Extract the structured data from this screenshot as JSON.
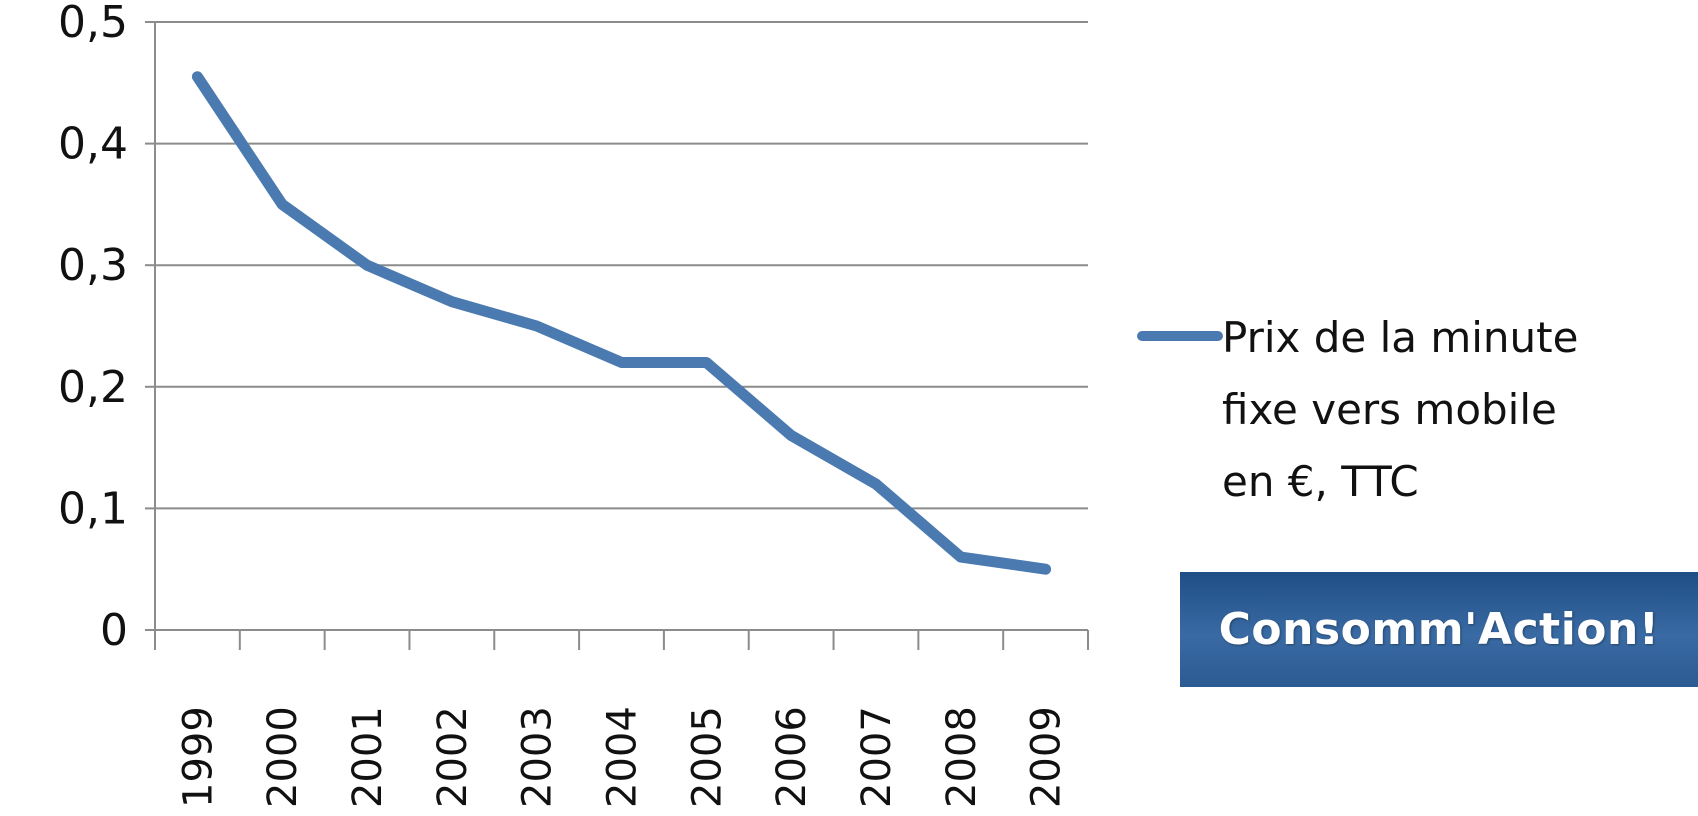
{
  "chart_data": {
    "type": "line",
    "x": [
      "1999",
      "2000",
      "2001",
      "2002",
      "2003",
      "2004",
      "2005",
      "2006",
      "2007",
      "2008",
      "2009"
    ],
    "series": [
      {
        "name": "Prix de la minute fixe vers mobile en €, TTC",
        "values": [
          0.455,
          0.35,
          0.3,
          0.27,
          0.25,
          0.22,
          0.22,
          0.16,
          0.12,
          0.06,
          0.05
        ]
      }
    ],
    "ylim": [
      0,
      0.5
    ],
    "yticks": [
      "0",
      "0,1",
      "0,2",
      "0,3",
      "0,4",
      "0,5"
    ],
    "grid": true,
    "legend_position": "right",
    "legend_lines": [
      "Prix de la minute",
      "fixe vers mobile",
      "en €, TTC"
    ],
    "colors": {
      "series": "#4a7ab0",
      "grid": "#8c8c8c"
    }
  },
  "brand": {
    "label": "Consomm'Action!"
  }
}
